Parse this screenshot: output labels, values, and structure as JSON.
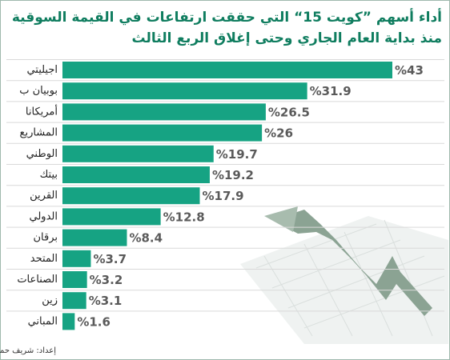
{
  "chart_data": {
    "type": "bar",
    "orientation": "horizontal",
    "title": "أداء أسهم ”كويت 15“ التي حققت ارتفاعات في القيمة السوقية",
    "subtitle": "منذ بداية العام الجاري وحتى إغلاق الربع الثالث",
    "categories": [
      "اجيليتي",
      "بوبيان ب",
      "أمريكانا",
      "المشاريع",
      "الوطني",
      "بيتك",
      "القرين",
      "الدولي",
      "برقان",
      "المتحد",
      "الصناعات",
      "زين",
      "المباني"
    ],
    "values": [
      43,
      31.9,
      26.5,
      26,
      19.7,
      19.2,
      17.9,
      12.8,
      8.4,
      3.7,
      3.2,
      3.1,
      1.6
    ],
    "value_labels": [
      "%43",
      "%31.9",
      "%26.5",
      "%26",
      "%19.7",
      "%19.2",
      "%17.9",
      "%12.8",
      "%8.4",
      "%3.7",
      "%3.2",
      "%3.1",
      "%1.6"
    ],
    "color": "#16a383",
    "credit": "إعداد: شريف حمدي"
  }
}
